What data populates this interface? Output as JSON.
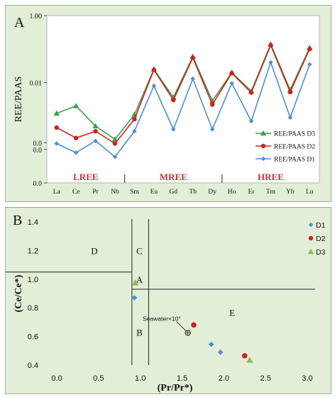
{
  "chart_data": [
    {
      "type": "line",
      "panel_label": "A",
      "ylabel": "REE/PAAS",
      "y_scale": "log",
      "ylim": [
        1e-05,
        1.0
      ],
      "y_tick_labels": [
        "1.00",
        "0.01",
        "0.0",
        "0.0",
        "0.0"
      ],
      "categories": [
        "La",
        "Ce",
        "Pr",
        "Nb",
        "Sm",
        "Eu",
        "Gd",
        "Tb",
        "Dy",
        "Ho",
        "Er",
        "Tm",
        "Yb",
        "Lu"
      ],
      "series": [
        {
          "name": "REE/PAAS D3",
          "color": "#3aa04a",
          "marker": "triangle",
          "values": [
            0.0012,
            0.002,
            0.0005,
            0.0002,
            0.0011,
            0.025,
            0.0036,
            0.06,
            0.0028,
            0.02,
            0.0055,
            0.14,
            0.006,
            0.11
          ]
        },
        {
          "name": "REE/PAAS D2",
          "color": "#d02020",
          "marker": "circle",
          "values": [
            0.00045,
            0.00022,
            0.00035,
            0.00015,
            0.0008,
            0.024,
            0.003,
            0.055,
            0.0022,
            0.019,
            0.005,
            0.13,
            0.0052,
            0.1
          ]
        },
        {
          "name": "REE/PAAS D1",
          "color": "#4a90d0",
          "marker": "diamond",
          "values": [
            0.00015,
            8e-05,
            0.00018,
            6e-05,
            0.00035,
            0.008,
            0.0004,
            0.013,
            0.0004,
            0.0095,
            0.0007,
            0.04,
            0.0009,
            0.035
          ]
        }
      ],
      "groups": [
        {
          "label": "LREE",
          "color": "#c83232"
        },
        {
          "label": "MREE",
          "color": "#c83232"
        },
        {
          "label": "HREE",
          "color": "#c83232"
        }
      ],
      "legend_placement": "bottom-right"
    },
    {
      "type": "scatter",
      "panel_label": "B",
      "xlabel": "(Pr/Pr*)",
      "ylabel": "(Ce/Ce*)",
      "xlim": [
        0.0,
        3.0
      ],
      "ylim": [
        0.4,
        1.4
      ],
      "x_ticks": [
        0.0,
        0.5,
        1.0,
        1.5,
        2.0,
        2.5,
        3.0
      ],
      "x_tick_labels": [
        "0.0",
        "0.5",
        "1.0",
        "1.5",
        "2.0",
        "2.5",
        "3.0"
      ],
      "y_ticks": [
        0.4,
        0.6,
        0.8,
        1.0,
        1.2,
        1.4
      ],
      "y_tick_labels": [
        "0.4",
        "0.6",
        "0.8",
        "1.0",
        "1.2",
        "1.4"
      ],
      "series": [
        {
          "name": "D1",
          "color": "#4a90d0",
          "marker": "diamond",
          "points": [
            [
              0.93,
              0.87
            ],
            [
              1.85,
              0.545
            ],
            [
              1.96,
              0.49
            ]
          ]
        },
        {
          "name": "D2",
          "color": "#d02020",
          "marker": "circle",
          "points": [
            [
              1.64,
              0.68
            ],
            [
              2.25,
              0.465
            ]
          ]
        },
        {
          "name": "D3",
          "color": "#8cbf4a",
          "marker": "triangle",
          "points": [
            [
              0.94,
              0.975
            ],
            [
              2.31,
              0.435
            ]
          ]
        }
      ],
      "boundaries": {
        "vertical_full": 0.9,
        "vertical_lower": 1.1,
        "horizontal_left": 1.05,
        "horizontal_right": 0.93
      },
      "regions": [
        "D",
        "C",
        "A",
        "B",
        "E"
      ],
      "annotation": {
        "text": "Seawater×10°",
        "x": 1.57,
        "y": 0.625
      },
      "legend_placement": "right"
    }
  ]
}
